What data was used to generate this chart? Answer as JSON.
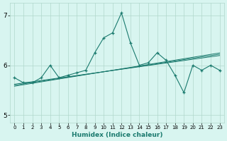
{
  "xlabel": "Humidex (Indice chaleur)",
  "x": [
    0,
    1,
    2,
    3,
    4,
    5,
    6,
    7,
    8,
    9,
    10,
    11,
    12,
    13,
    14,
    15,
    16,
    17,
    18,
    19,
    20,
    21,
    22,
    23
  ],
  "y_main": [
    5.75,
    5.65,
    5.65,
    5.75,
    6.0,
    5.75,
    5.8,
    5.85,
    5.9,
    6.25,
    6.55,
    6.65,
    7.05,
    6.45,
    6.0,
    6.05,
    6.25,
    6.1,
    5.8,
    5.45,
    6.0,
    5.9,
    6.0,
    5.9
  ],
  "y_trend1": [
    5.62,
    5.645,
    5.67,
    5.695,
    5.72,
    5.745,
    5.77,
    5.795,
    5.82,
    5.845,
    5.87,
    5.895,
    5.92,
    5.945,
    5.97,
    5.995,
    6.02,
    6.045,
    6.07,
    6.095,
    6.12,
    6.145,
    6.17,
    6.195
  ],
  "y_trend2": [
    5.6,
    5.627,
    5.654,
    5.681,
    5.708,
    5.735,
    5.762,
    5.789,
    5.816,
    5.843,
    5.87,
    5.897,
    5.924,
    5.951,
    5.978,
    6.005,
    6.032,
    6.059,
    6.086,
    6.113,
    6.14,
    6.167,
    6.194,
    6.221
  ],
  "y_trend3": [
    5.58,
    5.609,
    5.638,
    5.667,
    5.696,
    5.725,
    5.754,
    5.783,
    5.812,
    5.841,
    5.87,
    5.899,
    5.928,
    5.957,
    5.986,
    6.015,
    6.044,
    6.073,
    6.102,
    6.131,
    6.16,
    6.189,
    6.218,
    6.247
  ],
  "line_color": "#1a7a6e",
  "bg_color": "#d8f5f0",
  "grid_color": "#b0d8cc",
  "ylim": [
    4.85,
    7.25
  ],
  "yticks": [
    5,
    6,
    7
  ],
  "xticks": [
    0,
    1,
    2,
    3,
    4,
    5,
    6,
    7,
    8,
    9,
    10,
    11,
    12,
    13,
    14,
    15,
    16,
    17,
    18,
    19,
    20,
    21,
    22,
    23
  ]
}
